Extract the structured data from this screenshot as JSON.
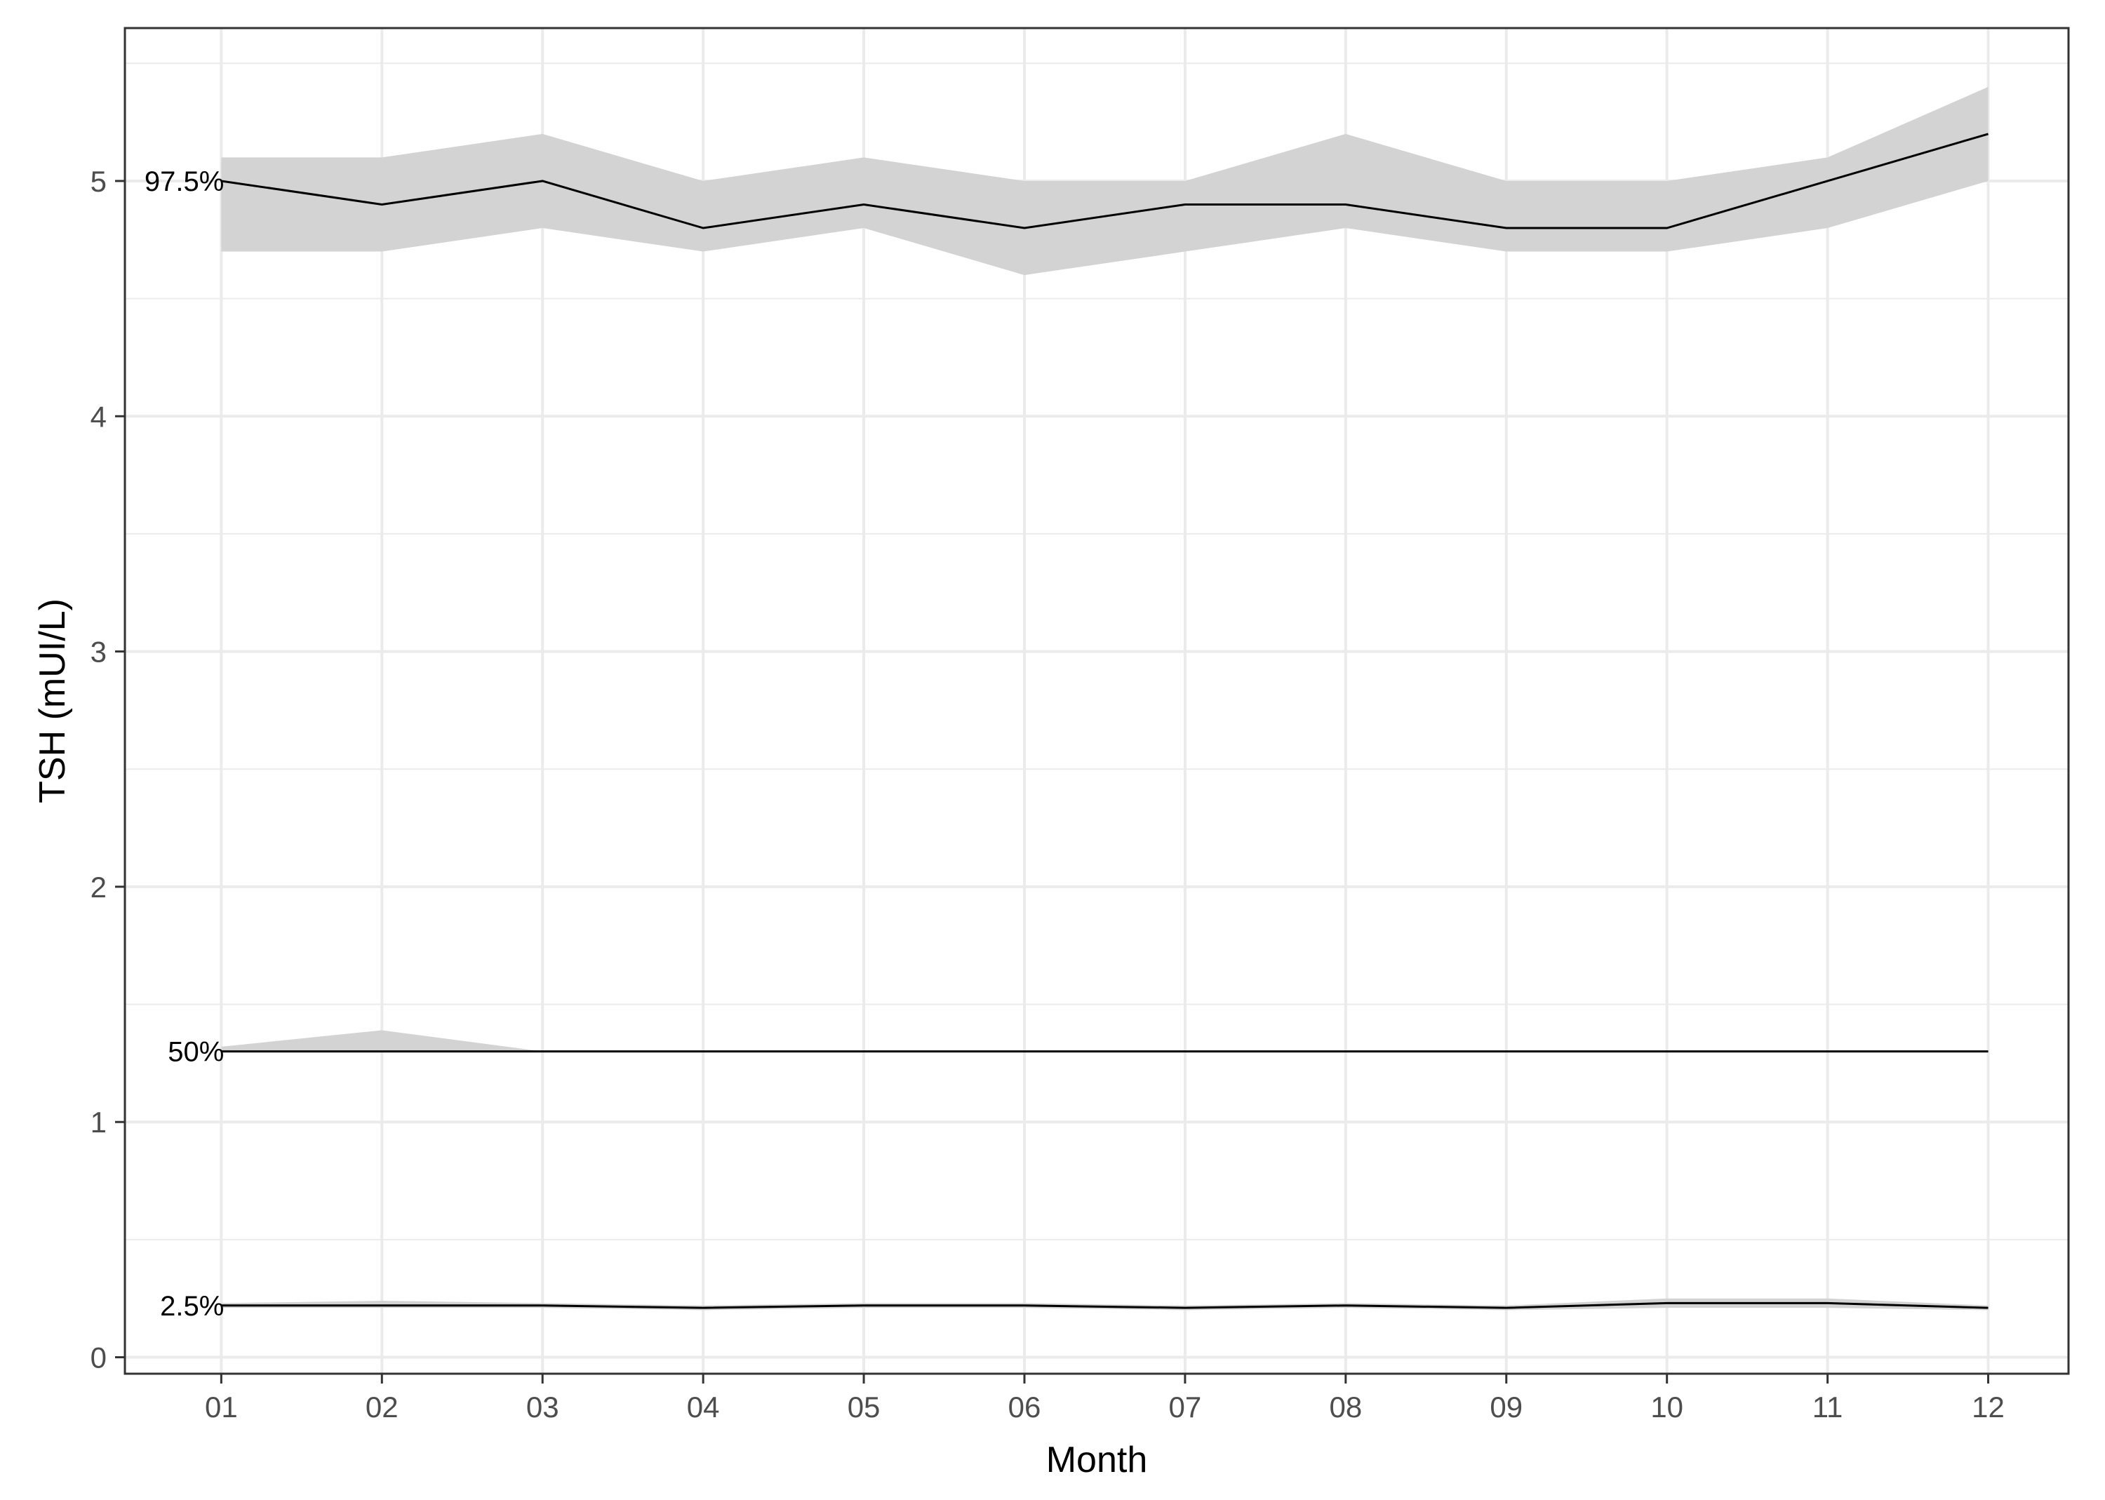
{
  "chart_data": {
    "type": "line",
    "title": "",
    "xlabel": "Month",
    "ylabel": "TSH  (mUI/L)",
    "categories": [
      "01",
      "02",
      "03",
      "04",
      "05",
      "06",
      "07",
      "08",
      "09",
      "10",
      "11",
      "12"
    ],
    "xlim": [
      0.4,
      12.5
    ],
    "ylim": [
      -0.07,
      5.65
    ],
    "y_ticks": [
      0,
      1,
      2,
      3,
      4,
      5
    ],
    "grid": true,
    "legend": "none",
    "colors": {
      "line": "#000000",
      "band": "#d3d3d3",
      "grid": "#ebebeb",
      "panel_border": "#333333"
    },
    "series": [
      {
        "name": "97.5%",
        "values": [
          5.0,
          4.9,
          5.0,
          4.8,
          4.9,
          4.8,
          4.9,
          4.9,
          4.8,
          4.8,
          5.0,
          5.2
        ],
        "lower": [
          4.7,
          4.7,
          4.8,
          4.7,
          4.8,
          4.6,
          4.7,
          4.8,
          4.7,
          4.7,
          4.8,
          5.0
        ],
        "upper": [
          5.1,
          5.1,
          5.2,
          5.0,
          5.1,
          5.0,
          5.0,
          5.2,
          5.0,
          5.0,
          5.1,
          5.4
        ]
      },
      {
        "name": "50%",
        "values": [
          1.3,
          1.3,
          1.3,
          1.3,
          1.3,
          1.3,
          1.3,
          1.3,
          1.3,
          1.3,
          1.3,
          1.3
        ],
        "lower": [
          1.3,
          1.3,
          1.3,
          1.3,
          1.3,
          1.3,
          1.3,
          1.3,
          1.3,
          1.3,
          1.3,
          1.3
        ],
        "upper": [
          1.32,
          1.39,
          1.3,
          1.3,
          1.3,
          1.3,
          1.3,
          1.3,
          1.3,
          1.3,
          1.3,
          1.3
        ]
      },
      {
        "name": "2.5%",
        "values": [
          0.22,
          0.22,
          0.22,
          0.21,
          0.22,
          0.22,
          0.21,
          0.22,
          0.21,
          0.23,
          0.23,
          0.21
        ],
        "lower": [
          0.21,
          0.21,
          0.21,
          0.2,
          0.21,
          0.21,
          0.2,
          0.21,
          0.2,
          0.21,
          0.21,
          0.2
        ],
        "upper": [
          0.23,
          0.24,
          0.23,
          0.22,
          0.23,
          0.23,
          0.22,
          0.23,
          0.22,
          0.25,
          0.25,
          0.22
        ]
      }
    ]
  }
}
